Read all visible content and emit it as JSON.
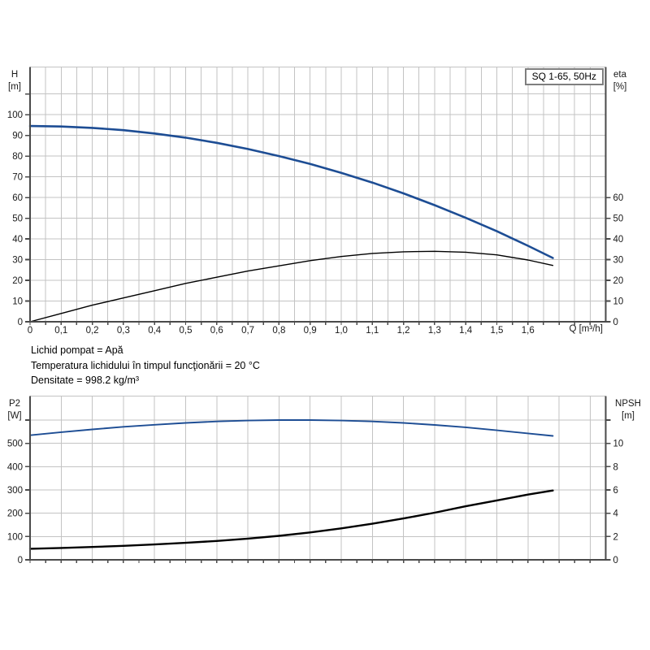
{
  "header": {
    "model_label": "SQ 1-65, 50Hz"
  },
  "footer": {
    "line1": "Lichid pompat = Apă",
    "line2": "Temperatura lichidului în timpul funcţionării = 20 °C",
    "line3": "Densitate = 998.2 kg/m³"
  },
  "colors": {
    "curve_blue": "#1d4d94",
    "curve_black": "#000000",
    "grid": "#c3c3c3",
    "axis": "#4a4a4a",
    "text": "#1a1a1a",
    "badge_border": "#7f7f7f",
    "background": "#ffffff"
  },
  "chart_data": [
    {
      "type": "line",
      "title": "SQ 1-65, 50Hz",
      "xlabel": "Q [m³/h]",
      "xlim": [
        0,
        1.85
      ],
      "x_grid_step": 0.05,
      "x_tick_step": 0.05,
      "x_label_step": 0.1,
      "x_tick_labels": [
        "0",
        "0,1",
        "0,2",
        "0,3",
        "0,4",
        "0,5",
        "0,6",
        "0,7",
        "0,8",
        "0,9",
        "1,0",
        "1,1",
        "1,2",
        "1,3",
        "1,4",
        "1,5",
        "1,6"
      ],
      "left_axis": {
        "name": "H",
        "unit": "[m]",
        "lim": [
          0,
          123
        ],
        "tick_step": 10,
        "label_max": 100,
        "extra_ticks": [
          110
        ],
        "grid_max": 110
      },
      "right_axis": {
        "name": "eta",
        "unit": "[%]",
        "lim": [
          0,
          123
        ],
        "tick_step": 10,
        "label_max": 60,
        "extra_ticks": []
      },
      "series": [
        {
          "name": "H",
          "axis": "left",
          "color_key": "curve_blue",
          "width": 2.6,
          "x": [
            0,
            0.1,
            0.2,
            0.3,
            0.4,
            0.5,
            0.6,
            0.7,
            0.8,
            0.9,
            1.0,
            1.1,
            1.2,
            1.3,
            1.4,
            1.5,
            1.6,
            1.68
          ],
          "y": [
            94.5,
            94.3,
            93.6,
            92.5,
            90.9,
            88.9,
            86.4,
            83.4,
            80.0,
            76.2,
            71.9,
            67.2,
            62.0,
            56.3,
            50.2,
            43.7,
            36.7,
            30.8
          ]
        },
        {
          "name": "eta",
          "axis": "right",
          "color_key": "curve_black",
          "width": 1.4,
          "x": [
            0,
            0.1,
            0.2,
            0.3,
            0.4,
            0.5,
            0.6,
            0.7,
            0.8,
            0.9,
            1.0,
            1.1,
            1.2,
            1.3,
            1.4,
            1.5,
            1.6,
            1.68
          ],
          "y": [
            0,
            4,
            8,
            11.5,
            15,
            18.5,
            21.5,
            24.5,
            27,
            29.5,
            31.5,
            33,
            33.8,
            34,
            33.6,
            32.3,
            29.8,
            27.2
          ]
        }
      ]
    },
    {
      "type": "line",
      "title": "",
      "xlabel": "",
      "xlim": [
        0,
        1.85
      ],
      "x_grid_step": 0.1,
      "x_tick_step": 0.05,
      "x_label_step": 0.1,
      "x_tick_labels": [],
      "left_axis": {
        "name": "P2",
        "unit": "[W]",
        "lim": [
          0,
          703
        ],
        "tick_step": 100,
        "label_max": 500,
        "extra_ticks": [
          600
        ],
        "grid_max": 600
      },
      "right_axis": {
        "name": "NPSH",
        "unit": "[m]",
        "lim": [
          0,
          14.06
        ],
        "tick_step": 2,
        "label_max": 10,
        "extra_ticks": [
          12
        ]
      },
      "series": [
        {
          "name": "P2",
          "axis": "left",
          "color_key": "curve_blue",
          "width": 1.9,
          "x": [
            0,
            0.1,
            0.2,
            0.3,
            0.4,
            0.5,
            0.6,
            0.7,
            0.8,
            0.9,
            1.0,
            1.1,
            1.2,
            1.3,
            1.4,
            1.5,
            1.6,
            1.68
          ],
          "y": [
            535,
            548,
            560,
            571,
            580,
            588,
            594,
            598,
            600,
            600,
            598,
            594,
            588,
            579,
            569,
            556,
            543,
            532
          ]
        },
        {
          "name": "NPSH",
          "axis": "right",
          "color_key": "curve_black",
          "width": 2.4,
          "x": [
            0,
            0.1,
            0.2,
            0.3,
            0.4,
            0.5,
            0.6,
            0.7,
            0.8,
            0.9,
            1.0,
            1.1,
            1.2,
            1.3,
            1.4,
            1.5,
            1.6,
            1.68
          ],
          "y": [
            0.95,
            1.02,
            1.1,
            1.2,
            1.32,
            1.46,
            1.62,
            1.82,
            2.06,
            2.35,
            2.7,
            3.1,
            3.55,
            4.05,
            4.6,
            5.1,
            5.6,
            5.95
          ]
        }
      ]
    }
  ]
}
